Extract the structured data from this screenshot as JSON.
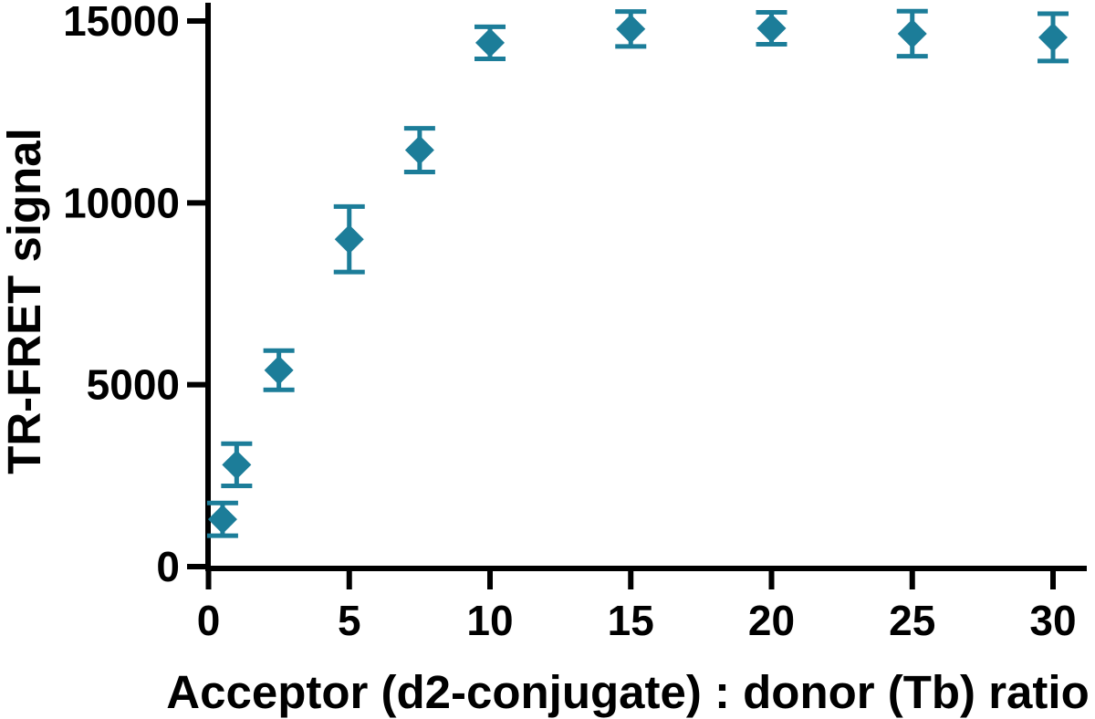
{
  "figure": {
    "background_color": "#ffffff",
    "axis_color": "#000000",
    "text_color": "#000000"
  },
  "chart_data": {
    "type": "scatter",
    "title": "",
    "xlabel": "Acceptor (d2-conjugate) : donor (Tb) ratio",
    "ylabel": "TR-FRET signal",
    "marker": "diamond",
    "marker_color": "#1c7d99",
    "error_bars": "symmetric-vertical-with-caps",
    "grid": false,
    "legend": null,
    "xlim": [
      0,
      31.2
    ],
    "ylim": [
      0,
      15500
    ],
    "x_ticks": [
      0,
      5,
      10,
      15,
      20,
      25,
      30
    ],
    "y_ticks": [
      0,
      5000,
      10000,
      15000
    ],
    "x": [
      0.5,
      1,
      2.5,
      5,
      7.5,
      10,
      15,
      20,
      25,
      30
    ],
    "y": [
      1300,
      2800,
      5400,
      9000,
      11450,
      14400,
      14780,
      14800,
      14650,
      14550
    ],
    "y_err": [
      450,
      580,
      540,
      900,
      600,
      440,
      480,
      440,
      620,
      650
    ]
  }
}
